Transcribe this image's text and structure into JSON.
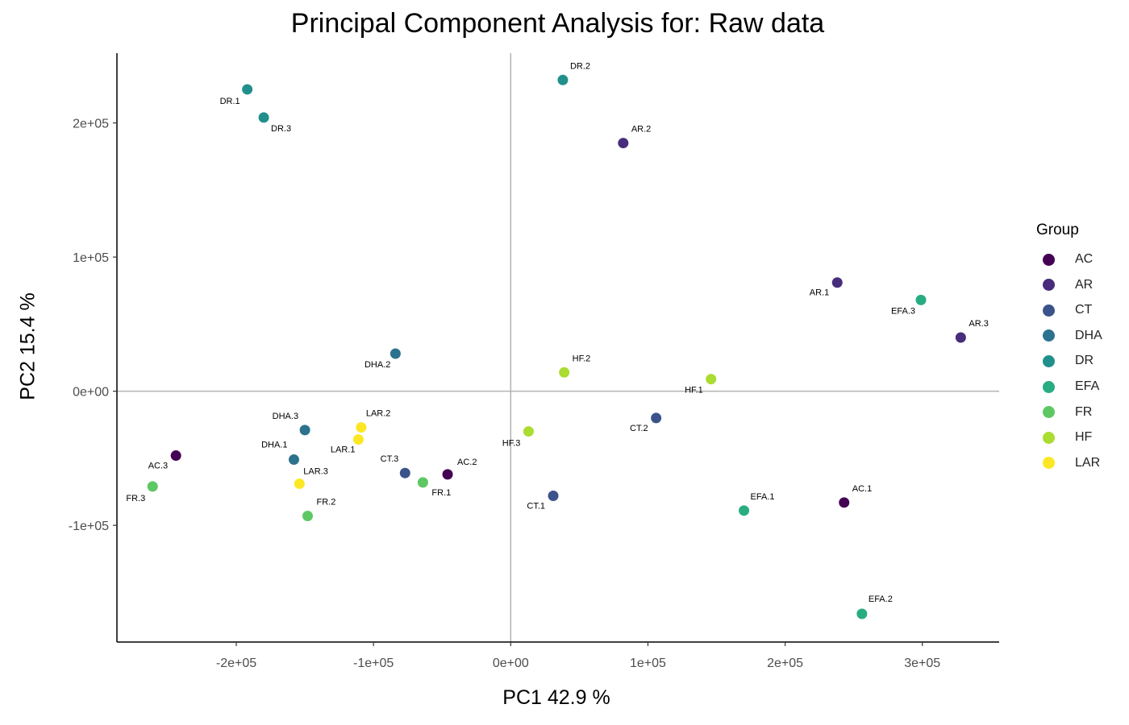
{
  "chart_data": {
    "type": "scatter",
    "title": "Principal Component Analysis for:  Raw data",
    "xlabel": "PC1 42.9 %",
    "ylabel": "PC2 15.4 %",
    "xlim": [
      -287000,
      356000
    ],
    "ylim": [
      -187000,
      252000
    ],
    "xticks": [
      -200000,
      -100000,
      0,
      100000,
      200000,
      300000
    ],
    "xtick_labels": [
      "-2e+05",
      "-1e+05",
      "0e+00",
      "1e+05",
      "2e+05",
      "3e+05"
    ],
    "yticks": [
      -100000,
      0,
      100000,
      200000
    ],
    "ytick_labels": [
      "-1e+05",
      "0e+00",
      "1e+05",
      "2e+05"
    ],
    "grid": false,
    "reference_lines": {
      "x": 0,
      "y": 0
    },
    "legend": {
      "title": "Group",
      "position": "right",
      "entries": [
        {
          "label": "AC",
          "color": "#440154"
        },
        {
          "label": "AR",
          "color": "#472D7B"
        },
        {
          "label": "CT",
          "color": "#3B528B"
        },
        {
          "label": "DHA",
          "color": "#2C728E"
        },
        {
          "label": "DR",
          "color": "#21908C"
        },
        {
          "label": "EFA",
          "color": "#27AD81"
        },
        {
          "label": "FR",
          "color": "#5DC863"
        },
        {
          "label": "HF",
          "color": "#AADC32"
        },
        {
          "label": "LAR",
          "color": "#FDE725"
        }
      ]
    },
    "points": [
      {
        "label": "AC.1",
        "group": "AC",
        "x": 243000,
        "y": -83000
      },
      {
        "label": "AC.2",
        "group": "AC",
        "x": -46000,
        "y": -62000
      },
      {
        "label": "AC.3",
        "group": "AC",
        "x": -244000,
        "y": -48000
      },
      {
        "label": "AR.1",
        "group": "AR",
        "x": 238000,
        "y": 81000
      },
      {
        "label": "AR.2",
        "group": "AR",
        "x": 82000,
        "y": 185000
      },
      {
        "label": "AR.3",
        "group": "AR",
        "x": 328000,
        "y": 40000
      },
      {
        "label": "CT.1",
        "group": "CT",
        "x": 31000,
        "y": -78000
      },
      {
        "label": "CT.2",
        "group": "CT",
        "x": 106000,
        "y": -20000
      },
      {
        "label": "CT.3",
        "group": "CT",
        "x": -77000,
        "y": -61000
      },
      {
        "label": "DHA.1",
        "group": "DHA",
        "x": -158000,
        "y": -51000
      },
      {
        "label": "DHA.2",
        "group": "DHA",
        "x": -84000,
        "y": 28000
      },
      {
        "label": "DHA.3",
        "group": "DHA",
        "x": -150000,
        "y": -29000
      },
      {
        "label": "DR.1",
        "group": "DR",
        "x": -192000,
        "y": 225000
      },
      {
        "label": "DR.2",
        "group": "DR",
        "x": 38000,
        "y": 232000
      },
      {
        "label": "DR.3",
        "group": "DR",
        "x": -180000,
        "y": 204000
      },
      {
        "label": "EFA.1",
        "group": "EFA",
        "x": 170000,
        "y": -89000
      },
      {
        "label": "EFA.2",
        "group": "EFA",
        "x": 256000,
        "y": -166000
      },
      {
        "label": "EFA.3",
        "group": "EFA",
        "x": 299000,
        "y": 68000
      },
      {
        "label": "FR.1",
        "group": "FR",
        "x": -64000,
        "y": -68000
      },
      {
        "label": "FR.2",
        "group": "FR",
        "x": -148000,
        "y": -93000
      },
      {
        "label": "FR.3",
        "group": "FR",
        "x": -261000,
        "y": -71000
      },
      {
        "label": "HF.1",
        "group": "HF",
        "x": 146000,
        "y": 9000
      },
      {
        "label": "HF.2",
        "group": "HF",
        "x": 39000,
        "y": 14000
      },
      {
        "label": "HF.3",
        "group": "HF",
        "x": 13000,
        "y": -30000
      },
      {
        "label": "LAR.1",
        "group": "LAR",
        "x": -111000,
        "y": -36000
      },
      {
        "label": "LAR.2",
        "group": "LAR",
        "x": -109000,
        "y": -27000
      },
      {
        "label": "LAR.3",
        "group": "LAR",
        "x": -154000,
        "y": -69000
      }
    ]
  }
}
